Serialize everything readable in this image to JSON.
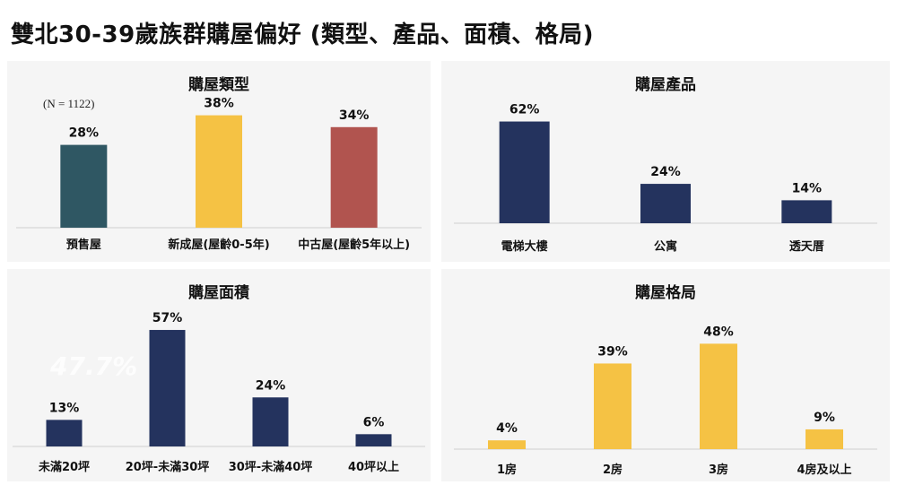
{
  "page_title": "雙北30-39歲族群購屋偏好 (類型、產品、面積、格局)",
  "colors": {
    "navy": "#24335e",
    "gold": "#f5c244",
    "teal": "#2f5763",
    "red": "#b1544f",
    "panel_bg": "#f5f5f5"
  },
  "chart_data": [
    {
      "type": "bar",
      "title": "購屋類型",
      "note": "(N = 1122)",
      "categories": [
        "預售屋",
        "新成屋(屋齡0-5年)",
        "中古屋(屋齡5年以上)"
      ],
      "values": [
        28,
        38,
        34
      ],
      "value_labels": [
        "28%",
        "38%",
        "34%"
      ],
      "colors": [
        "#2f5763",
        "#f5c244",
        "#b1544f"
      ],
      "ylim": [
        0,
        40
      ]
    },
    {
      "type": "bar",
      "title": "購屋產品",
      "categories": [
        "電梯大樓",
        "公寓",
        "透天厝"
      ],
      "values": [
        62,
        24,
        14
      ],
      "value_labels": [
        "62%",
        "24%",
        "14%"
      ],
      "colors": [
        "#24335e",
        "#24335e",
        "#24335e"
      ],
      "ylim": [
        0,
        70
      ]
    },
    {
      "type": "bar",
      "title": "購屋面積",
      "watermark": "47.7%",
      "categories": [
        "未滿20坪",
        "20坪-未滿30坪",
        "30坪-未滿40坪",
        "40坪以上"
      ],
      "values": [
        13,
        57,
        24,
        6
      ],
      "value_labels": [
        "13%",
        "57%",
        "24%",
        "6%"
      ],
      "colors": [
        "#24335e",
        "#24335e",
        "#24335e",
        "#24335e"
      ],
      "ylim": [
        0,
        60
      ]
    },
    {
      "type": "bar",
      "title": "購屋格局",
      "categories": [
        "1房",
        "2房",
        "3房",
        "4房及以上"
      ],
      "values": [
        4,
        39,
        48,
        9
      ],
      "value_labels": [
        "4%",
        "39%",
        "48%",
        "9%"
      ],
      "colors": [
        "#f5c244",
        "#f5c244",
        "#f5c244",
        "#f5c244"
      ],
      "ylim": [
        0,
        55
      ]
    }
  ]
}
